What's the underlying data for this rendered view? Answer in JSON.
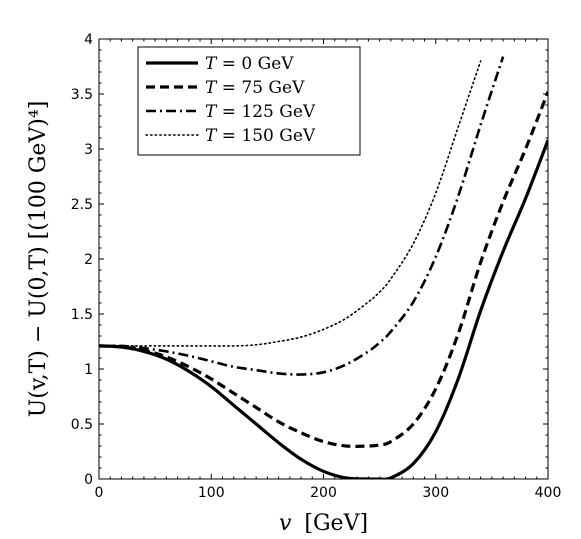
{
  "chart_data": {
    "type": "line",
    "xlabel_var": "v",
    "xlabel_unit": "[GeV]",
    "ylabel": "U(v,T) − U(0,T) [(100 GeV)⁴]",
    "xlim": [
      0,
      400
    ],
    "ylim": [
      0,
      4
    ],
    "xticks": [
      0,
      100,
      200,
      300,
      400
    ],
    "yticks": [
      0,
      0.5,
      1,
      1.5,
      2,
      2.5,
      3,
      3.5,
      4
    ],
    "grid": false,
    "legend_position": "top-left",
    "x": [
      0,
      20,
      40,
      60,
      80,
      100,
      120,
      140,
      160,
      180,
      200,
      220,
      240,
      250,
      260,
      280,
      300,
      320,
      340,
      360,
      380,
      400
    ],
    "series": [
      {
        "name_var": "T",
        "name_eq": " = 0 GeV",
        "style": "solid",
        "values": [
          1.21,
          1.2,
          1.16,
          1.09,
          0.98,
          0.84,
          0.67,
          0.5,
          0.33,
          0.18,
          0.07,
          0.01,
          0.0,
          0.0,
          0.01,
          0.14,
          0.43,
          0.91,
          1.53,
          2.07,
          2.55,
          3.08
        ]
      },
      {
        "name_var": "T",
        "name_eq": " = 75 GeV",
        "style": "dashed",
        "values": [
          1.21,
          1.2,
          1.17,
          1.11,
          1.02,
          0.91,
          0.78,
          0.65,
          0.52,
          0.42,
          0.34,
          0.3,
          0.3,
          0.31,
          0.34,
          0.5,
          0.82,
          1.32,
          1.97,
          2.52,
          3.0,
          3.52
        ]
      },
      {
        "name_var": "T",
        "name_eq": " = 125 GeV",
        "style": "dashdot",
        "values": [
          1.21,
          1.21,
          1.19,
          1.16,
          1.12,
          1.07,
          1.02,
          0.99,
          0.96,
          0.95,
          0.97,
          1.04,
          1.16,
          1.24,
          1.34,
          1.61,
          2.02,
          2.57,
          3.22,
          3.84,
          null,
          null
        ]
      },
      {
        "name_var": "T",
        "name_eq": " = 150 GeV",
        "style": "dotted",
        "values": [
          1.21,
          1.21,
          1.21,
          1.21,
          1.21,
          1.21,
          1.21,
          1.22,
          1.25,
          1.29,
          1.36,
          1.46,
          1.61,
          1.7,
          1.82,
          2.14,
          2.6,
          3.2,
          3.8,
          null,
          null,
          null
        ]
      }
    ]
  }
}
